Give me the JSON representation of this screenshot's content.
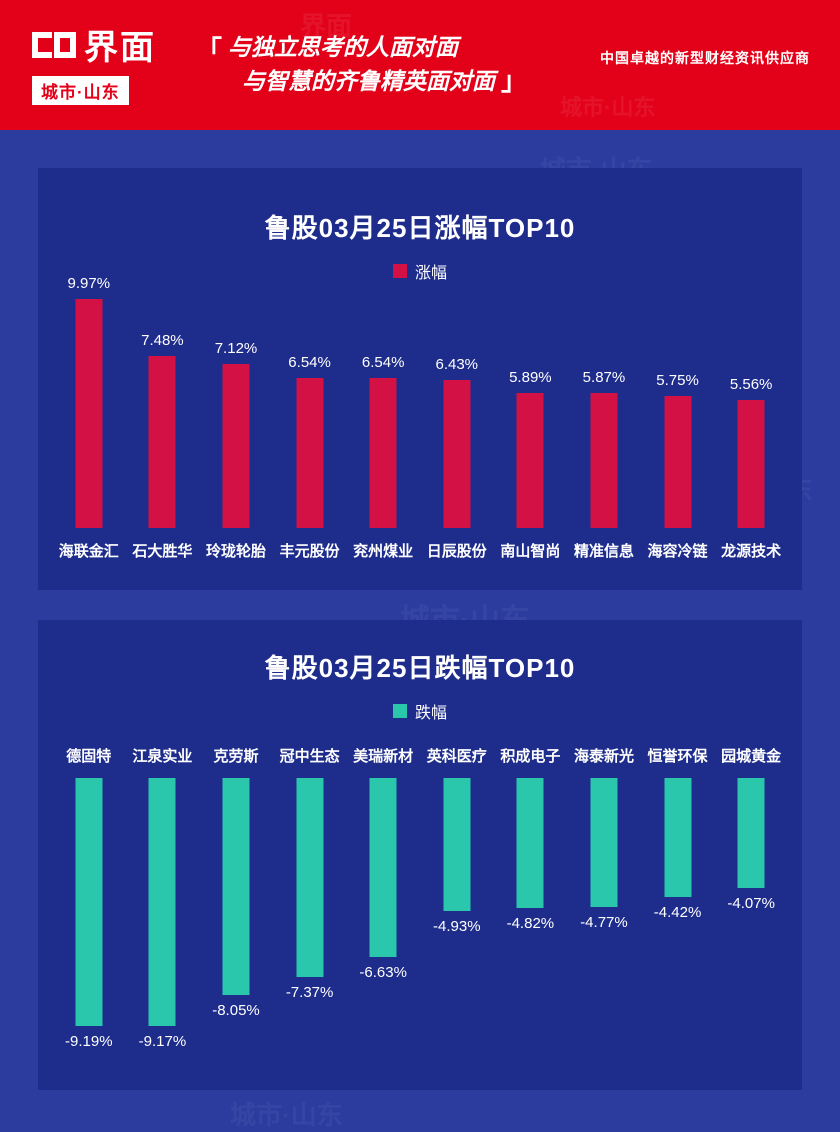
{
  "header": {
    "logo_text": "界面",
    "logo_sub": "城市·山东",
    "quote_open": "「",
    "quote_close": "」",
    "quote_line1": "与独立思考的人面对面",
    "quote_line2": "与智慧的齐鲁精英面对面",
    "tagline": "中国卓越的新型财经资讯供应商"
  },
  "watermark": {
    "text": "城市·山东",
    "logo": "界面"
  },
  "colors": {
    "header_red": "#e30119",
    "background_blue": "#2b3b9e",
    "panel_blue": "#1e2d8c",
    "gain_red": "#d31145",
    "loss_teal": "#2bc7ad"
  },
  "chart_data": [
    {
      "type": "bar",
      "title": "鲁股03月25日涨幅TOP10",
      "legend": "涨幅",
      "legend_position": "top-center",
      "grid": false,
      "bar_color": "#d31145",
      "ylim": [
        0,
        10
      ],
      "categories": [
        "海联金汇",
        "石大胜华",
        "玲珑轮胎",
        "丰元股份",
        "兖州煤业",
        "日辰股份",
        "南山智尚",
        "精准信息",
        "海容冷链",
        "龙源技术"
      ],
      "values": [
        9.97,
        7.48,
        7.12,
        6.54,
        6.54,
        6.43,
        5.89,
        5.87,
        5.75,
        5.56
      ],
      "labels": [
        "9.97%",
        "7.48%",
        "7.12%",
        "6.54%",
        "6.54%",
        "6.43%",
        "5.89%",
        "5.87%",
        "5.75%",
        "5.56%"
      ]
    },
    {
      "type": "bar",
      "title": "鲁股03月25日跌幅TOP10",
      "legend": "跌幅",
      "legend_position": "top-center",
      "grid": false,
      "bar_color": "#2bc7ad",
      "ylim": [
        -10,
        0
      ],
      "categories": [
        "德固特",
        "江泉实业",
        "克劳斯",
        "冠中生态",
        "美瑞新材",
        "英科医疗",
        "积成电子",
        "海泰新光",
        "恒誉环保",
        "园城黄金"
      ],
      "values": [
        -9.19,
        -9.17,
        -8.05,
        -7.37,
        -6.63,
        -4.93,
        -4.82,
        -4.77,
        -4.42,
        -4.07
      ],
      "labels": [
        "-9.19%",
        "-9.17%",
        "-8.05%",
        "-7.37%",
        "-6.63%",
        "-4.93%",
        "-4.82%",
        "-4.77%",
        "-4.42%",
        "-4.07%"
      ]
    }
  ]
}
